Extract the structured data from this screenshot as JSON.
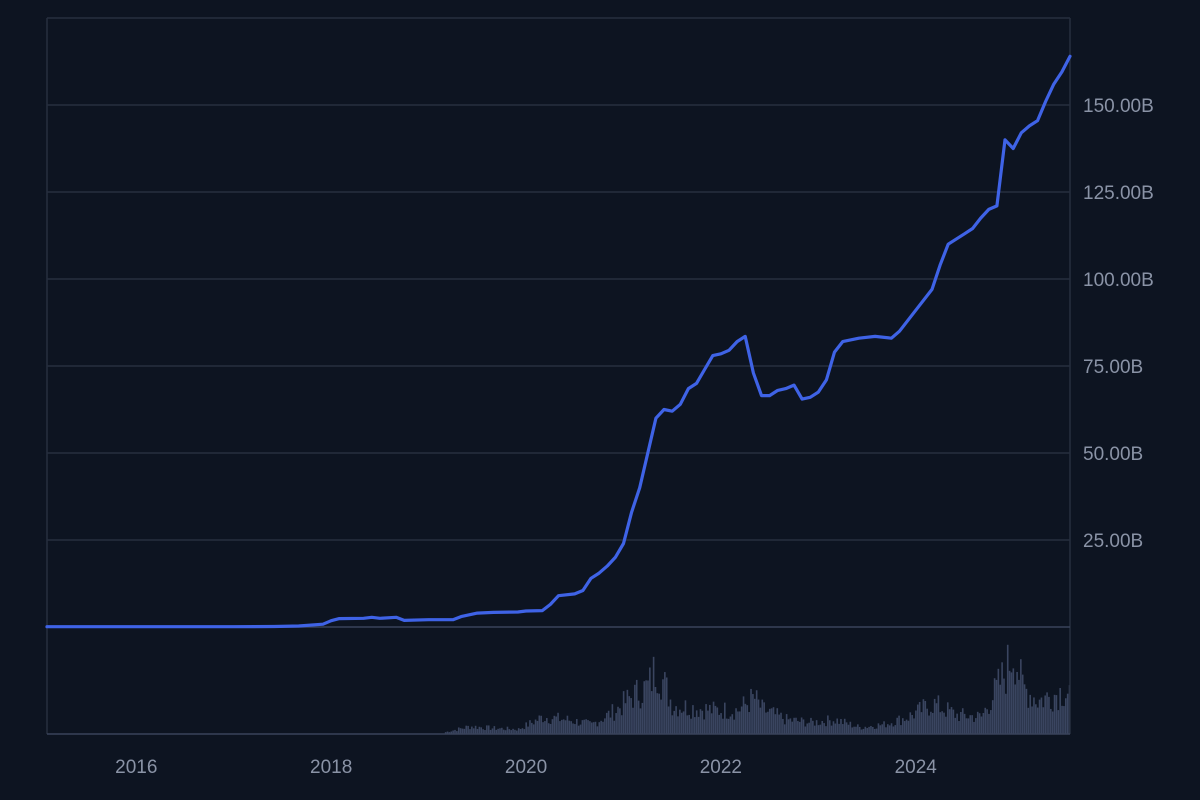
{
  "chart_data": {
    "type": "line",
    "title": "",
    "xlabel": "",
    "ylabel": "",
    "x_ticks": [
      "2016",
      "2018",
      "2020",
      "2022",
      "2024"
    ],
    "y_ticks": [
      {
        "value": 25,
        "label": "25.00B"
      },
      {
        "value": 50,
        "label": "50.00B"
      },
      {
        "value": 75,
        "label": "75.00B"
      },
      {
        "value": 100,
        "label": "100.00B"
      },
      {
        "value": 125,
        "label": "125.00B"
      },
      {
        "value": 150,
        "label": "150.00B"
      }
    ],
    "xlim": [
      "2015-02",
      "2025-08"
    ],
    "ylim": [
      0,
      175
    ],
    "grid": "horizontal",
    "colors": {
      "background": "#0d1421",
      "line": "#3f63e6",
      "grid": "#262e3f",
      "volume": "#3a4560",
      "tick_text": "#8a93a6"
    },
    "series": [
      {
        "unit": "B",
        "points": [
          {
            "x": "2015-02-01",
            "y": 0.1
          },
          {
            "x": "2016-01-01",
            "y": 0.1
          },
          {
            "x": "2017-01-01",
            "y": 0.1
          },
          {
            "x": "2017-06-01",
            "y": 0.15
          },
          {
            "x": "2017-09-01",
            "y": 0.3
          },
          {
            "x": "2017-12-01",
            "y": 0.8
          },
          {
            "x": "2018-01-01",
            "y": 1.8
          },
          {
            "x": "2018-02-01",
            "y": 2.4
          },
          {
            "x": "2018-05-01",
            "y": 2.5
          },
          {
            "x": "2018-06-01",
            "y": 2.8
          },
          {
            "x": "2018-07-01",
            "y": 2.5
          },
          {
            "x": "2018-09-01",
            "y": 2.8
          },
          {
            "x": "2018-10-01",
            "y": 1.9
          },
          {
            "x": "2019-01-01",
            "y": 2.1
          },
          {
            "x": "2019-04-01",
            "y": 2.1
          },
          {
            "x": "2019-05-01",
            "y": 3.0
          },
          {
            "x": "2019-07-01",
            "y": 4.0
          },
          {
            "x": "2019-09-01",
            "y": 4.2
          },
          {
            "x": "2019-12-01",
            "y": 4.3
          },
          {
            "x": "2020-01-01",
            "y": 4.6
          },
          {
            "x": "2020-03-01",
            "y": 4.7
          },
          {
            "x": "2020-04-01",
            "y": 6.5
          },
          {
            "x": "2020-05-01",
            "y": 9.0
          },
          {
            "x": "2020-07-01",
            "y": 9.5
          },
          {
            "x": "2020-08-01",
            "y": 10.5
          },
          {
            "x": "2020-09-01",
            "y": 14.0
          },
          {
            "x": "2020-10-01",
            "y": 15.5
          },
          {
            "x": "2020-11-01",
            "y": 17.5
          },
          {
            "x": "2020-12-01",
            "y": 20.0
          },
          {
            "x": "2021-01-01",
            "y": 24.0
          },
          {
            "x": "2021-02-01",
            "y": 33.0
          },
          {
            "x": "2021-03-01",
            "y": 40.0
          },
          {
            "x": "2021-04-01",
            "y": 50.0
          },
          {
            "x": "2021-05-01",
            "y": 60.0
          },
          {
            "x": "2021-06-01",
            "y": 62.5
          },
          {
            "x": "2021-07-01",
            "y": 62.0
          },
          {
            "x": "2021-08-01",
            "y": 64.0
          },
          {
            "x": "2021-09-01",
            "y": 68.5
          },
          {
            "x": "2021-10-01",
            "y": 70.0
          },
          {
            "x": "2021-11-01",
            "y": 74.0
          },
          {
            "x": "2021-12-01",
            "y": 78.0
          },
          {
            "x": "2022-01-01",
            "y": 78.5
          },
          {
            "x": "2022-02-01",
            "y": 79.5
          },
          {
            "x": "2022-03-01",
            "y": 82.0
          },
          {
            "x": "2022-04-01",
            "y": 83.5
          },
          {
            "x": "2022-05-01",
            "y": 73.0
          },
          {
            "x": "2022-06-01",
            "y": 66.5
          },
          {
            "x": "2022-07-01",
            "y": 66.5
          },
          {
            "x": "2022-08-01",
            "y": 68.0
          },
          {
            "x": "2022-09-01",
            "y": 68.5
          },
          {
            "x": "2022-10-01",
            "y": 69.5
          },
          {
            "x": "2022-11-01",
            "y": 65.5
          },
          {
            "x": "2022-12-01",
            "y": 66.0
          },
          {
            "x": "2023-01-01",
            "y": 67.5
          },
          {
            "x": "2023-02-01",
            "y": 71.0
          },
          {
            "x": "2023-03-01",
            "y": 79.0
          },
          {
            "x": "2023-04-01",
            "y": 82.0
          },
          {
            "x": "2023-06-01",
            "y": 83.0
          },
          {
            "x": "2023-08-01",
            "y": 83.5
          },
          {
            "x": "2023-10-01",
            "y": 83.0
          },
          {
            "x": "2023-11-01",
            "y": 85.0
          },
          {
            "x": "2024-01-01",
            "y": 91.0
          },
          {
            "x": "2024-03-01",
            "y": 97.0
          },
          {
            "x": "2024-04-01",
            "y": 104.0
          },
          {
            "x": "2024-05-01",
            "y": 110.0
          },
          {
            "x": "2024-07-01",
            "y": 113.0
          },
          {
            "x": "2024-08-01",
            "y": 114.5
          },
          {
            "x": "2024-09-01",
            "y": 117.5
          },
          {
            "x": "2024-10-01",
            "y": 120.0
          },
          {
            "x": "2024-11-01",
            "y": 121.0
          },
          {
            "x": "2024-12-01",
            "y": 140.0
          },
          {
            "x": "2025-01-01",
            "y": 137.5
          },
          {
            "x": "2025-02-01",
            "y": 142.0
          },
          {
            "x": "2025-03-01",
            "y": 144.0
          },
          {
            "x": "2025-04-01",
            "y": 145.5
          },
          {
            "x": "2025-05-01",
            "y": 151.0
          },
          {
            "x": "2025-06-01",
            "y": 156.0
          },
          {
            "x": "2025-07-01",
            "y": 159.5
          },
          {
            "x": "2025-08-01",
            "y": 164.0
          }
        ]
      }
    ],
    "volume_panel": {
      "shown": true,
      "visible_from": "2019-03",
      "relative_level_by_month": [
        {
          "x": "2019-03",
          "v": 0.02
        },
        {
          "x": "2019-06",
          "v": 0.08
        },
        {
          "x": "2019-09",
          "v": 0.06
        },
        {
          "x": "2019-12",
          "v": 0.05
        },
        {
          "x": "2020-03",
          "v": 0.18
        },
        {
          "x": "2020-06",
          "v": 0.15
        },
        {
          "x": "2020-09",
          "v": 0.1
        },
        {
          "x": "2020-12",
          "v": 0.25
        },
        {
          "x": "2021-02",
          "v": 0.4
        },
        {
          "x": "2021-04",
          "v": 0.5
        },
        {
          "x": "2021-05",
          "v": 0.72
        },
        {
          "x": "2021-07",
          "v": 0.3
        },
        {
          "x": "2021-09",
          "v": 0.28
        },
        {
          "x": "2021-12",
          "v": 0.25
        },
        {
          "x": "2022-03",
          "v": 0.25
        },
        {
          "x": "2022-05",
          "v": 0.38
        },
        {
          "x": "2022-06",
          "v": 0.26
        },
        {
          "x": "2022-09",
          "v": 0.15
        },
        {
          "x": "2022-12",
          "v": 0.12
        },
        {
          "x": "2023-03",
          "v": 0.15
        },
        {
          "x": "2023-06",
          "v": 0.07
        },
        {
          "x": "2023-09",
          "v": 0.1
        },
        {
          "x": "2023-12",
          "v": 0.18
        },
        {
          "x": "2024-03",
          "v": 0.32
        },
        {
          "x": "2024-06",
          "v": 0.2
        },
        {
          "x": "2024-09",
          "v": 0.18
        },
        {
          "x": "2024-12",
          "v": 0.65
        },
        {
          "x": "2025-01",
          "v": 0.9
        },
        {
          "x": "2025-02",
          "v": 0.5
        },
        {
          "x": "2025-04",
          "v": 0.35
        },
        {
          "x": "2025-07",
          "v": 0.45
        }
      ]
    }
  }
}
